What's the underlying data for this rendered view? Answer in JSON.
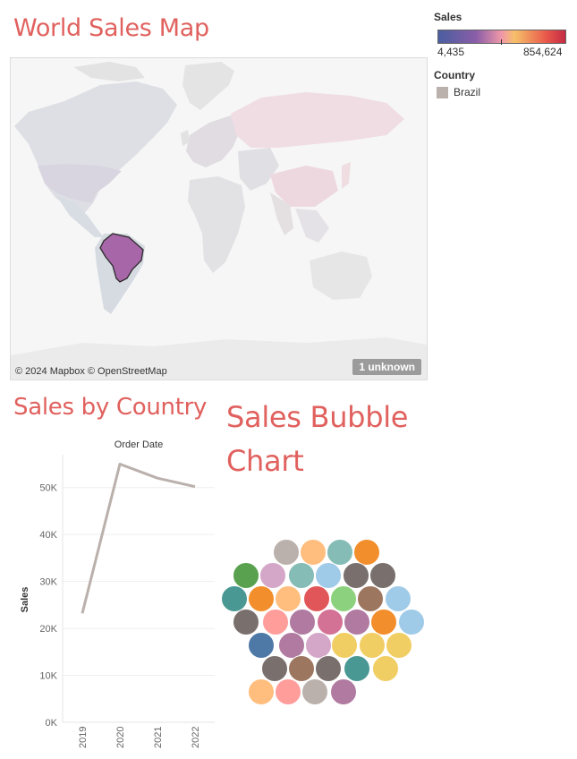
{
  "map_title": "World Sales Map",
  "line_title": "Sales by Country",
  "bubble_title": "Sales Bubble Chart",
  "legend": {
    "sales_title": "Sales",
    "sales_min": "4,435",
    "sales_max": "854,624",
    "country_title": "Country",
    "country_item": "Brazil",
    "country_color": "#bab0ac"
  },
  "map": {
    "attribution": "© 2024 Mapbox © OpenStreetMap",
    "unknown_badge": "1 unknown",
    "highlight_color": "#a666a8"
  },
  "chart_data": {
    "type": "line",
    "title": "Order Date",
    "xlabel": "",
    "ylabel": "Sales",
    "x": [
      "2019",
      "2020",
      "2021",
      "2022"
    ],
    "yticks": [
      "0K",
      "10K",
      "20K",
      "30K",
      "40K",
      "50K"
    ],
    "ylim": [
      0,
      57000
    ],
    "series": [
      {
        "values": [
          23200,
          55000,
          52000,
          50200
        ],
        "color": "#bab0ac"
      }
    ],
    "grid": true
  },
  "bubbles": {
    "colors": [
      "#bab0ac",
      "#ffbe7d",
      "#86bcb6",
      "#f28e2b",
      "#59a14f",
      "#d4a6c8",
      "#86bcb6",
      "#a0cbe8",
      "#79706e",
      "#79706e",
      "#499894",
      "#f28e2b",
      "#ffbe7d",
      "#e15759",
      "#8cd17d",
      "#9d7660",
      "#a0cbe8",
      "#79706e",
      "#ff9d9a",
      "#b07aa1",
      "#d37295",
      "#b07aa1",
      "#f28e2b",
      "#a0cbe8",
      "#4e79a7",
      "#b07aa1",
      "#d4a6c8",
      "#f1ce63",
      "#f1ce63",
      "#f1ce63",
      "#79706e",
      "#9d7660",
      "#79706e",
      "#499894",
      "#f1ce63",
      "#ffbe7d",
      "#ff9d9a",
      "#bab0ac",
      "#b07aa1"
    ]
  }
}
